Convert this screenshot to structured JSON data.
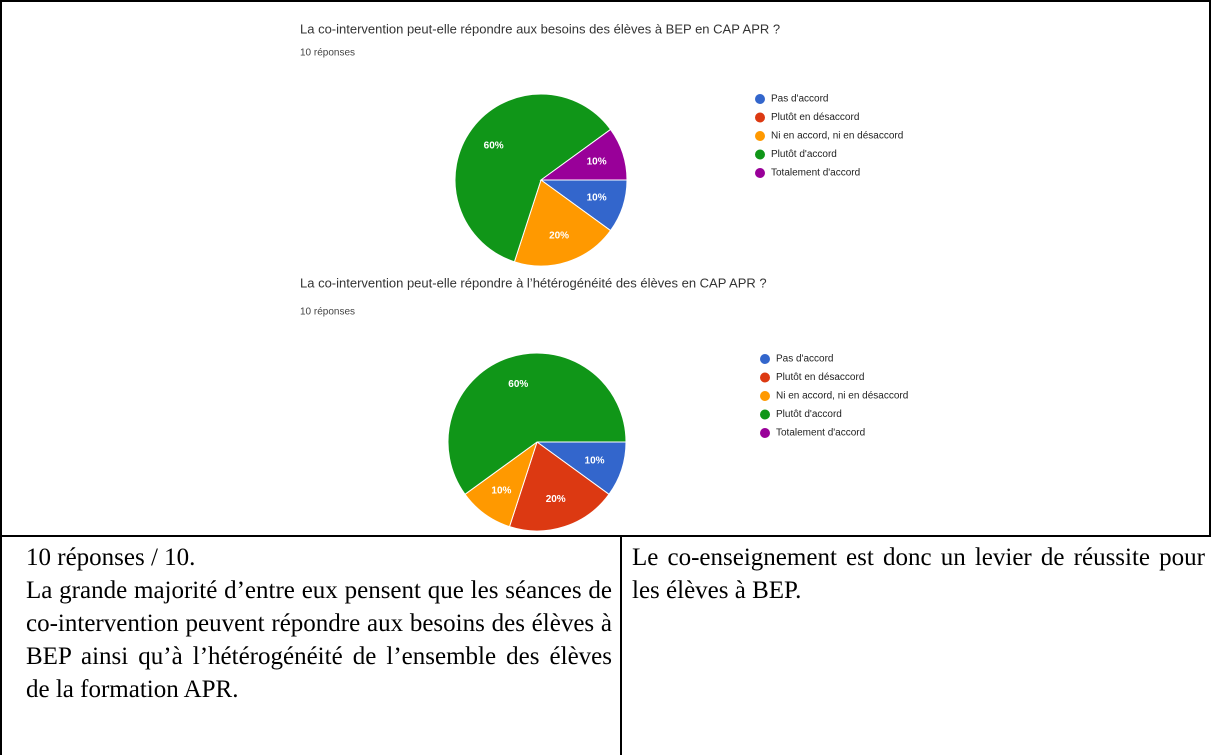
{
  "chart_data": [
    {
      "type": "pie",
      "title": "La co-intervention peut-elle répondre aux besoins des élèves à BEP en CAP APR ?",
      "subtitle": "10 réponses",
      "categories": [
        "Pas d'accord",
        "Plutôt en désaccord",
        "Ni en accord, ni en désaccord",
        "Plutôt d'accord",
        "Totalement d'accord"
      ],
      "values": [
        10,
        0,
        20,
        60,
        10
      ],
      "value_labels": [
        "10%",
        null,
        "20%",
        "60%",
        "10%"
      ],
      "colors": [
        "#3366cc",
        "#dc3912",
        "#ff9900",
        "#109618",
        "#990099"
      ]
    },
    {
      "type": "pie",
      "title": "La co-intervention peut-elle répondre à l’hétérogénéité des élèves en CAP APR ?",
      "subtitle": "10 réponses",
      "categories": [
        "Pas d'accord",
        "Plutôt en désaccord",
        "Ni en accord, ni en désaccord",
        "Plutôt d'accord",
        "Totalement d'accord"
      ],
      "values": [
        10,
        20,
        10,
        60,
        0
      ],
      "value_labels": [
        "10%",
        "20%",
        "10%",
        "60%",
        null
      ],
      "colors": [
        "#3366cc",
        "#dc3912",
        "#ff9900",
        "#109618",
        "#990099"
      ]
    }
  ],
  "text": {
    "left": [
      "10 réponses / 10.",
      "La grande majorité d’entre eux pensent que les séances de co-intervention peuvent répondre aux besoins des élèves à BEP ainsi qu’à l’hétérogénéité de l’ensemble des élèves de la formation APR."
    ],
    "right": "Le co-enseignement est donc un levier de réussite pour les élèves à BEP."
  }
}
